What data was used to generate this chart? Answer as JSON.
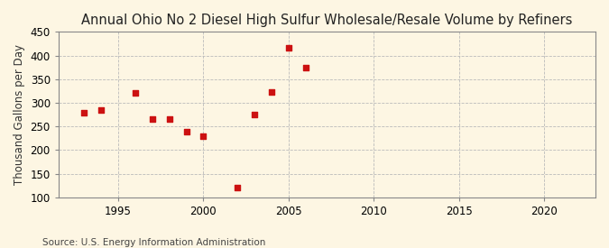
{
  "title": "Annual Ohio No 2 Diesel High Sulfur Wholesale/Resale Volume by Refiners",
  "ylabel": "Thousand Gallons per Day",
  "source": "Source: U.S. Energy Information Administration",
  "background_color": "#fdf6e3",
  "plot_bg_color": "#fdf6e3",
  "years": [
    1993,
    1994,
    1996,
    1997,
    1998,
    1999,
    2000,
    2002,
    2003,
    2004,
    2005,
    2006
  ],
  "values": [
    278,
    284,
    320,
    265,
    265,
    238,
    229,
    120,
    276,
    323,
    416,
    374
  ],
  "marker_color": "#cc1111",
  "xlim": [
    1991.5,
    2023
  ],
  "ylim": [
    100,
    450
  ],
  "xticks": [
    1995,
    2000,
    2005,
    2010,
    2015,
    2020
  ],
  "yticks": [
    100,
    150,
    200,
    250,
    300,
    350,
    400,
    450
  ],
  "title_fontsize": 10.5,
  "label_fontsize": 8.5,
  "tick_fontsize": 8.5,
  "source_fontsize": 7.5,
  "grid_color": "#bbbbbb",
  "spine_color": "#888888"
}
